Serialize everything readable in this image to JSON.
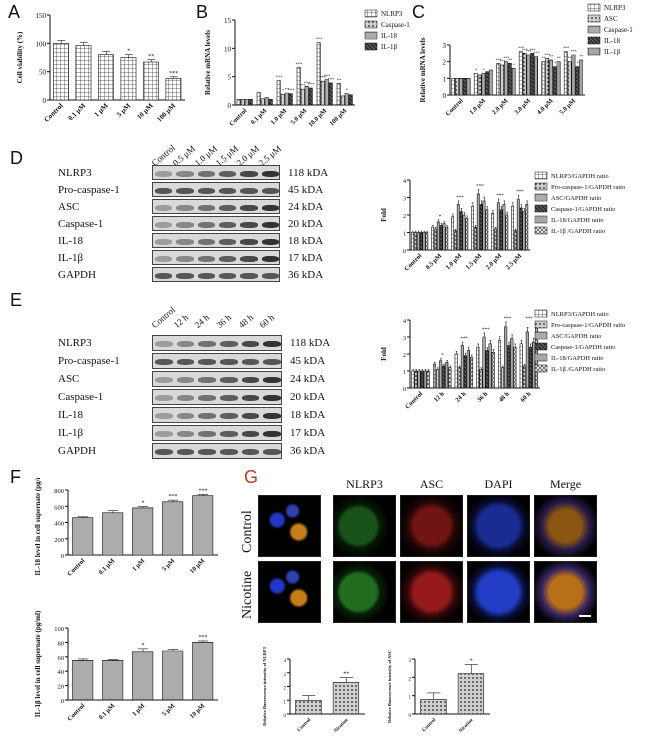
{
  "panels": {
    "A": "A",
    "B": "B",
    "C": "C",
    "D": "D",
    "E": "E",
    "F": "F",
    "G": "G"
  },
  "chart_data": [
    {
      "id": "A",
      "type": "bar",
      "ylabel": "Cell viability (%)",
      "ylim": [
        0,
        150
      ],
      "yticks": [
        0,
        50,
        100,
        150
      ],
      "categories": [
        "Control",
        "0.1 μM",
        "1 μM",
        "5 μM",
        "10 μM",
        "100 μM"
      ],
      "values": [
        100,
        96,
        80,
        75,
        67,
        38
      ],
      "errors": [
        5,
        6,
        6,
        5,
        4,
        3
      ],
      "sig": [
        "",
        "",
        "",
        "*",
        "**",
        "***"
      ]
    },
    {
      "id": "B",
      "type": "bar",
      "ylabel": "Relative mRNA levels",
      "ylim": [
        0,
        15
      ],
      "yticks": [
        0,
        5,
        10,
        15
      ],
      "categories": [
        "Control",
        "0.1 μM",
        "1.0 μM",
        "5.0 μM",
        "10.0 μM",
        "100 μM"
      ],
      "series": [
        {
          "name": "NLRP3",
          "values": [
            1.0,
            2.2,
            4.3,
            6.6,
            11.0,
            3.8
          ],
          "sig": [
            "",
            "",
            "***",
            "***",
            "***",
            "**"
          ]
        },
        {
          "name": "Caspase-1",
          "values": [
            1.0,
            1.1,
            1.9,
            2.8,
            4.2,
            1.6
          ],
          "sig": [
            "",
            "",
            "*",
            "**",
            "***",
            ""
          ]
        },
        {
          "name": "IL-18",
          "values": [
            1.0,
            1.3,
            2.1,
            3.3,
            4.5,
            2.0
          ],
          "sig": [
            "",
            "",
            "**",
            "***",
            "***",
            "*"
          ]
        },
        {
          "name": "IL-1β",
          "values": [
            1.0,
            1.0,
            2.0,
            3.0,
            3.9,
            1.8
          ],
          "sig": [
            "",
            "",
            "***",
            "***",
            "***",
            ""
          ]
        }
      ]
    },
    {
      "id": "C",
      "type": "bar",
      "ylabel": "Relative mRNA levels",
      "ylim": [
        0,
        3
      ],
      "yticks": [
        0,
        1,
        2,
        3
      ],
      "categories": [
        "Control",
        "1.0 μM",
        "2.0 μM",
        "3.0 μM",
        "4.0 μM",
        "5.0 μM"
      ],
      "series": [
        {
          "name": "NLRP3",
          "values": [
            1.0,
            1.3,
            1.9,
            2.6,
            2.0,
            2.6
          ],
          "sig": [
            "",
            "*",
            "***",
            "***",
            "**",
            "***"
          ]
        },
        {
          "name": "ASC",
          "values": [
            1.0,
            1.2,
            1.8,
            2.5,
            2.2,
            2.0
          ],
          "sig": [
            "",
            "",
            "***",
            "***",
            "***",
            "**"
          ]
        },
        {
          "name": "Caspase-1",
          "values": [
            1.0,
            1.3,
            2.0,
            2.4,
            2.1,
            2.4
          ],
          "sig": [
            "",
            "*",
            "***",
            "***",
            "**",
            "***"
          ]
        },
        {
          "name": "IL-18",
          "values": [
            1.0,
            1.4,
            1.9,
            2.5,
            1.7,
            1.7
          ],
          "sig": [
            "",
            "",
            "**",
            "***",
            "*",
            "*"
          ]
        },
        {
          "name": "IL-1β",
          "values": [
            1.0,
            1.5,
            1.6,
            2.3,
            2.0,
            2.1
          ],
          "sig": [
            "",
            "",
            "*",
            "***",
            "**",
            "**"
          ]
        }
      ]
    },
    {
      "id": "D",
      "type": "bar",
      "ylabel": "Fold",
      "ylim": [
        0,
        4
      ],
      "yticks": [
        0,
        1,
        2,
        3,
        4
      ],
      "categories": [
        "Control",
        "0.5 μM",
        "1.0 μM",
        "1.5 μM",
        "2.0 μM",
        "2.5 μM"
      ],
      "series": [
        {
          "name": "NLRP3/GAPDH ratio",
          "values": [
            1.0,
            1.3,
            1.9,
            2.5,
            2.1,
            2.5
          ]
        },
        {
          "name": "Pro-caspase-1/GAPDH ratio",
          "values": [
            1.0,
            1.2,
            1.1,
            1.3,
            1.2,
            1.1
          ]
        },
        {
          "name": "ASC/GAPDH ratio",
          "values": [
            1.0,
            1.6,
            2.6,
            3.2,
            2.7,
            2.9
          ]
        },
        {
          "name": "Caspase-1/GAPDH ratio",
          "values": [
            1.0,
            1.4,
            2.2,
            2.6,
            2.3,
            2.4
          ]
        },
        {
          "name": "IL-18/GAPDH ratio",
          "values": [
            1.0,
            1.5,
            2.0,
            2.8,
            2.6,
            2.2
          ]
        },
        {
          "name": "IL-1β /GAPDH ratio",
          "values": [
            1.0,
            1.3,
            1.8,
            2.3,
            2.0,
            2.6
          ]
        }
      ],
      "sig": [
        "",
        "*",
        "***",
        "***",
        "***",
        "***"
      ]
    },
    {
      "id": "E",
      "type": "bar",
      "ylabel": "Fold",
      "ylim": [
        0,
        4
      ],
      "yticks": [
        0,
        1,
        2,
        3,
        4
      ],
      "categories": [
        "Control",
        "12 h",
        "24 h",
        "36 h",
        "48 h",
        "60 h"
      ],
      "series": [
        {
          "name": "NLRP3/GAPDH ratio",
          "values": [
            1.0,
            1.4,
            2.0,
            2.4,
            2.8,
            2.6
          ]
        },
        {
          "name": "Pro-caspase-1/GAPDH ratio",
          "values": [
            1.0,
            1.1,
            1.2,
            1.1,
            1.2,
            1.3
          ]
        },
        {
          "name": "ASC/GAPDH ratio",
          "values": [
            1.0,
            1.6,
            2.5,
            3.0,
            3.6,
            3.3
          ]
        },
        {
          "name": "Caspase-1/GAPDH ratio",
          "values": [
            1.0,
            1.3,
            1.9,
            2.2,
            2.5,
            2.4
          ]
        },
        {
          "name": "IL-18/GAPDH ratio",
          "values": [
            1.0,
            1.5,
            2.2,
            2.6,
            2.9,
            2.7
          ]
        },
        {
          "name": "IL-1β /GAPDH ratio",
          "values": [
            1.0,
            1.2,
            1.8,
            2.1,
            2.4,
            3.6
          ]
        }
      ],
      "sig": [
        "",
        "*",
        "***",
        "***",
        "***",
        "***"
      ]
    },
    {
      "id": "F1",
      "type": "bar",
      "ylabel": "IL-18 level in cell supernate (pg/ml)",
      "ylim": [
        0,
        800
      ],
      "yticks": [
        0,
        200,
        400,
        600,
        800
      ],
      "categories": [
        "Control",
        "0.1 μM",
        "1 μM",
        "5 μM",
        "10 μM"
      ],
      "values": [
        460,
        520,
        580,
        655,
        730
      ],
      "errors": [
        10,
        25,
        15,
        20,
        15
      ],
      "sig": [
        "",
        "",
        "*",
        "***",
        "***"
      ]
    },
    {
      "id": "F2",
      "type": "bar",
      "ylabel": "IL-1β level in cell supernate (pg/ml)",
      "ylim": [
        0,
        100
      ],
      "yticks": [
        0,
        20,
        40,
        60,
        80,
        100
      ],
      "categories": [
        "Control",
        "0.1 μM",
        "1 μM",
        "5 μM",
        "10 μM"
      ],
      "values": [
        55,
        55,
        67,
        68,
        80
      ],
      "errors": [
        2,
        1,
        4,
        2,
        2
      ],
      "sig": [
        "",
        "",
        "*",
        "",
        "***"
      ]
    },
    {
      "id": "G1",
      "type": "bar",
      "ylabel": "Relative fluorescence intensity of NLRP3",
      "ylim": [
        0,
        4
      ],
      "yticks": [
        0,
        1,
        2,
        3,
        4
      ],
      "categories": [
        "Control",
        "Nicotine"
      ],
      "values": [
        1.0,
        2.3
      ],
      "errors": [
        0.35,
        0.35
      ],
      "sig": [
        "",
        "**"
      ]
    },
    {
      "id": "G2",
      "type": "bar",
      "ylabel": "Relative fluorescence intensity of ASC",
      "ylim": [
        0,
        3
      ],
      "yticks": [
        0,
        1,
        2,
        3
      ],
      "categories": [
        "Control",
        "Nicotine"
      ],
      "values": [
        0.8,
        2.2
      ],
      "errors": [
        0.35,
        0.5
      ],
      "sig": [
        "",
        "*"
      ]
    }
  ],
  "blotD": {
    "lanes": [
      "Control",
      "0.5 μM",
      "1.0 μM",
      "1.5 μM",
      "2.0 μM",
      "2.5 μM"
    ],
    "proteins": [
      "NLRP3",
      "Pro-caspase-1",
      "ASC",
      "Caspase-1",
      "IL-18",
      "IL-1β",
      "GAPDH"
    ],
    "kda": [
      "118 kDA",
      "45 kDA",
      "24 kDA",
      "20 kDA",
      "18 kDA",
      "17 kDA",
      "36 kDA"
    ]
  },
  "blotE": {
    "lanes": [
      "Control",
      "12 h",
      "24 h",
      "36 h",
      "48 h",
      "60 h"
    ],
    "proteins": [
      "NLRP3",
      "Pro-caspase-1",
      "ASC",
      "Caspase-1",
      "IL-18",
      "IL-1β",
      "GAPDH"
    ],
    "kda": [
      "118 kDA",
      "45 kDA",
      "24 kDA",
      "20 kDA",
      "18 kDA",
      "17 kDA",
      "36 kDA"
    ]
  },
  "micrograph": {
    "columns": [
      "NLRP3",
      "ASC",
      "DAPI",
      "Merge"
    ],
    "rows": [
      "Control",
      "Nicotine"
    ]
  }
}
